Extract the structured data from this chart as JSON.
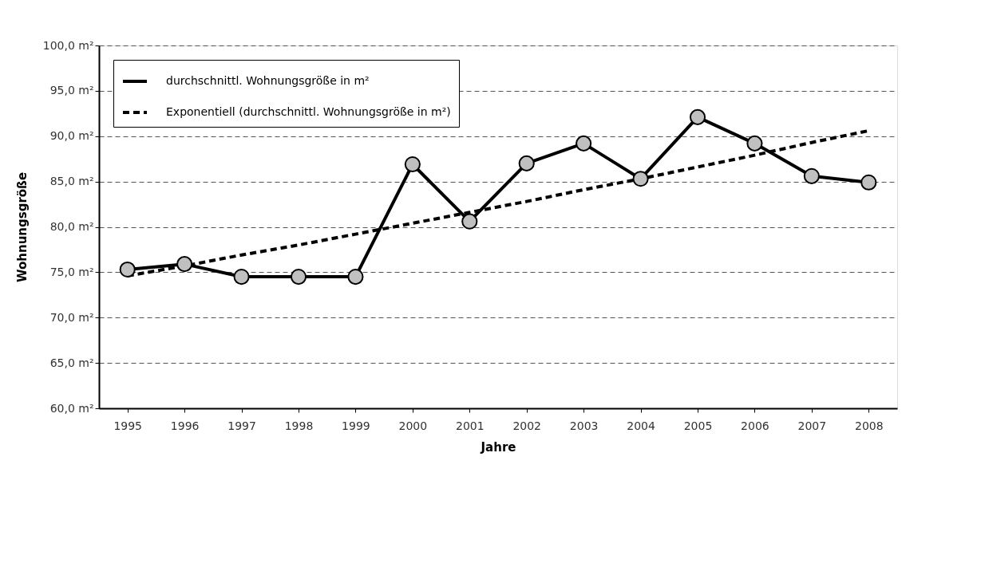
{
  "chart_data": {
    "type": "line",
    "xlabel": "Jahre",
    "ylabel": "Wohnungsgröße",
    "categories": [
      "1995",
      "1996",
      "1997",
      "1998",
      "1999",
      "2000",
      "2001",
      "2002",
      "2003",
      "2004",
      "2005",
      "2006",
      "2007",
      "2008"
    ],
    "series": [
      {
        "name": "durchschnittl. Wohnungsgröße in m²",
        "color": "#000000",
        "marker": "circle",
        "line_style": "solid",
        "values": [
          75.3,
          75.9,
          74.5,
          74.5,
          74.5,
          86.9,
          80.6,
          87.0,
          89.2,
          85.3,
          92.1,
          89.2,
          85.6,
          84.9
        ]
      },
      {
        "name": "Exponentiell (durchschnittl. Wohnungsgröße in m²)",
        "color": "#000000",
        "marker": "none",
        "line_style": "dashed",
        "values": [
          74.6,
          75.7,
          76.9,
          78.0,
          79.2,
          80.4,
          81.6,
          82.8,
          84.1,
          85.3,
          86.6,
          87.9,
          89.3,
          90.6
        ]
      }
    ],
    "ylim": [
      60,
      100
    ],
    "yticks": [
      {
        "value": 60,
        "label": "60,0 m²"
      },
      {
        "value": 65,
        "label": "65,0 m²"
      },
      {
        "value": 70,
        "label": "70,0 m²"
      },
      {
        "value": 75,
        "label": "75,0 m²"
      },
      {
        "value": 80,
        "label": "80,0 m²"
      },
      {
        "value": 85,
        "label": "85,0 m²"
      },
      {
        "value": 90,
        "label": "90,0 m²"
      },
      {
        "value": 95,
        "label": "95,0 m²"
      },
      {
        "value": 100,
        "label": "100,0 m²"
      }
    ],
    "grid": "y",
    "legend": "top left"
  }
}
